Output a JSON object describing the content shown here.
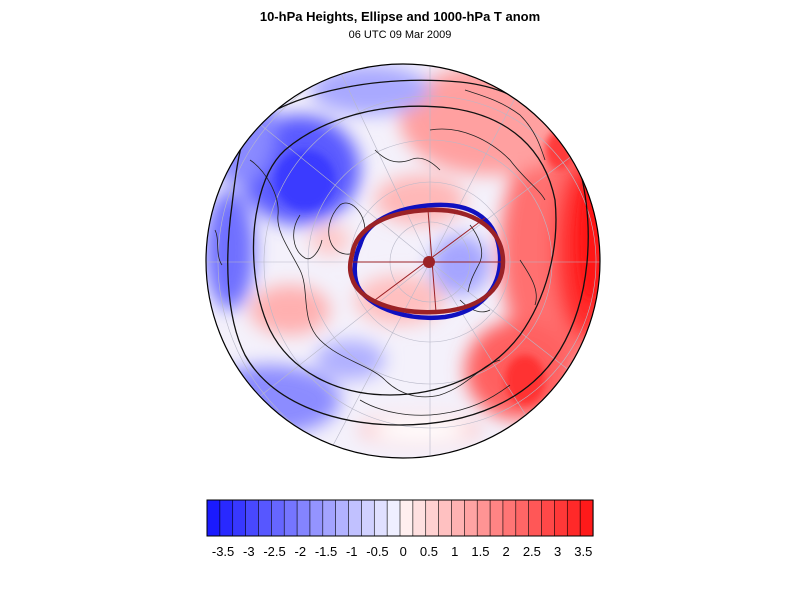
{
  "title": "10-hPa Heights, Ellipse and 1000-hPa T anom",
  "subtitle": "06 UTC 09 Mar 2009",
  "map": {
    "projection": "polar stereographic, north pole centered",
    "field": "1000-hPa temperature anomaly (filled)",
    "overlays": [
      "10-hPa height contours (black)",
      "vortex ellipse (dark red)",
      "vortex edge contour (blue)",
      "coastlines"
    ]
  },
  "colors": {
    "negative_max": "#1a1aff",
    "neutral": "#ffffff",
    "positive_max": "#ff1a1a",
    "ellipse": "#9b2226",
    "edge_contour": "#1010c0"
  },
  "colorbar": {
    "labels": [
      "-3.5",
      "-3",
      "-2.5",
      "-2",
      "-1.5",
      "-1",
      "-0.5",
      "0",
      "0.5",
      "1",
      "1.5",
      "2",
      "2.5",
      "3",
      "3.5"
    ],
    "n_bins": 30
  }
}
